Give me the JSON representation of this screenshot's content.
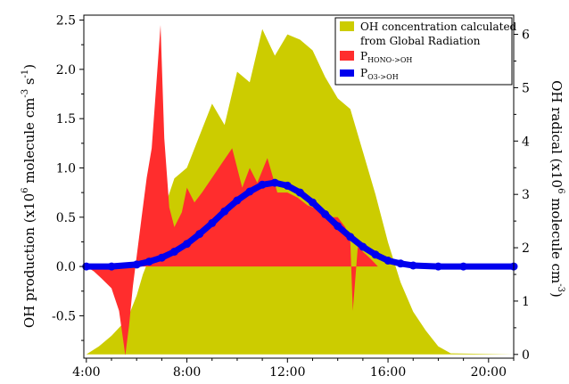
{
  "chart_data": {
    "type": "area",
    "x_axis": {
      "ticks": [
        "4:00",
        "8:00",
        "12:00",
        "16:00",
        "20:00"
      ],
      "tick_hours": [
        4,
        8,
        12,
        16,
        20
      ],
      "range_hours": [
        3.9,
        21
      ]
    },
    "y_left": {
      "label_parts": [
        "OH production (x10",
        "6",
        " molecule cm",
        "-3",
        " s",
        "-1",
        ")"
      ],
      "ticks": [
        "-0.5",
        "0.0",
        "0.5",
        "1.0",
        "1.5",
        "2.0",
        "2.5"
      ],
      "tick_values": [
        -0.5,
        0,
        0.5,
        1,
        1.5,
        2,
        2.5
      ],
      "range": [
        -0.93,
        2.55
      ]
    },
    "y_right": {
      "label_parts": [
        "OH radical (x10",
        "6",
        " molecule cm",
        "-3",
        ")"
      ],
      "ticks": [
        "0",
        "1",
        "2",
        "3",
        "4",
        "5",
        "6"
      ],
      "tick_values": [
        0,
        1,
        2,
        3,
        4,
        5,
        6
      ],
      "range": [
        -0.07,
        6.36
      ]
    },
    "legend": {
      "position": "top-right",
      "entries": [
        {
          "text_lines": [
            "OH concentration calculated",
            "from Global Radiation"
          ],
          "color": "#cccc00",
          "swatch": "box"
        },
        {
          "text_main": "P",
          "text_sub": "HONO->OH",
          "color": "#ff2d2d",
          "swatch": "box"
        },
        {
          "text_main": "P",
          "text_sub": "O3->OH",
          "color": "#0000ee",
          "swatch": "line"
        }
      ]
    },
    "series": [
      {
        "name": "OH concentration calculated from Global Radiation",
        "axis": "right",
        "color": "#cccc00",
        "style": "filled-area",
        "x": [
          4.0,
          4.5,
          5.0,
          5.5,
          5.75,
          6.0,
          6.25,
          6.5,
          6.75,
          7.0,
          7.5,
          8.0,
          8.5,
          9.0,
          9.5,
          10.0,
          10.5,
          11.0,
          11.5,
          12.0,
          12.5,
          13.0,
          13.5,
          14.0,
          14.5,
          15.0,
          15.5,
          16.0,
          16.5,
          17.0,
          17.5,
          18.0,
          18.5,
          21.0
        ],
        "y": [
          0.0,
          0.15,
          0.35,
          0.6,
          0.8,
          1.1,
          1.5,
          1.8,
          2.2,
          2.6,
          3.3,
          3.5,
          4.1,
          4.7,
          4.3,
          5.3,
          5.1,
          6.1,
          5.6,
          6.0,
          5.9,
          5.7,
          5.2,
          4.8,
          4.6,
          3.8,
          3.0,
          2.1,
          1.35,
          0.8,
          0.45,
          0.15,
          0.02,
          0.0
        ]
      },
      {
        "name": "PHONO->OH",
        "axis": "left",
        "color": "#ff2d2d",
        "style": "filled-area",
        "x": [
          4.0,
          4.3,
          4.6,
          5.0,
          5.3,
          5.55,
          5.7,
          5.85,
          6.0,
          6.2,
          6.4,
          6.6,
          6.8,
          6.95,
          7.1,
          7.3,
          7.5,
          7.8,
          8.0,
          8.3,
          8.6,
          9.0,
          9.4,
          9.8,
          10.2,
          10.5,
          10.8,
          11.2,
          11.6,
          12.0,
          12.4,
          12.8,
          13.2,
          13.6,
          14.0,
          14.3,
          14.5,
          14.6,
          14.8,
          15.0,
          15.3,
          15.6,
          15.9,
          16.0
        ],
        "y": [
          0.0,
          -0.05,
          -0.12,
          -0.22,
          -0.45,
          -0.9,
          -0.6,
          -0.2,
          0.1,
          0.5,
          0.9,
          1.2,
          1.9,
          2.45,
          1.3,
          0.6,
          0.4,
          0.55,
          0.8,
          0.65,
          0.75,
          0.9,
          1.05,
          1.2,
          0.8,
          1.0,
          0.85,
          1.1,
          0.75,
          0.75,
          0.7,
          0.62,
          0.58,
          0.5,
          0.5,
          0.4,
          0.25,
          -0.45,
          0.2,
          0.15,
          0.08,
          0.0,
          0.0,
          0.0
        ]
      },
      {
        "name": "PO3->OH",
        "axis": "left",
        "color": "#0000ee",
        "style": "thick-line",
        "x": [
          4.0,
          5.0,
          6.0,
          6.5,
          7.0,
          7.5,
          8.0,
          8.5,
          9.0,
          9.5,
          10.0,
          10.5,
          11.0,
          11.5,
          12.0,
          12.5,
          13.0,
          13.5,
          14.0,
          14.5,
          15.0,
          15.5,
          16.0,
          16.5,
          17.0,
          18.0,
          19.0,
          21.0
        ],
        "y": [
          0.0,
          0.0,
          0.02,
          0.05,
          0.09,
          0.15,
          0.23,
          0.33,
          0.44,
          0.56,
          0.67,
          0.76,
          0.83,
          0.85,
          0.82,
          0.75,
          0.65,
          0.53,
          0.41,
          0.3,
          0.2,
          0.12,
          0.06,
          0.03,
          0.01,
          0.0,
          0.0,
          0.0
        ]
      }
    ]
  }
}
